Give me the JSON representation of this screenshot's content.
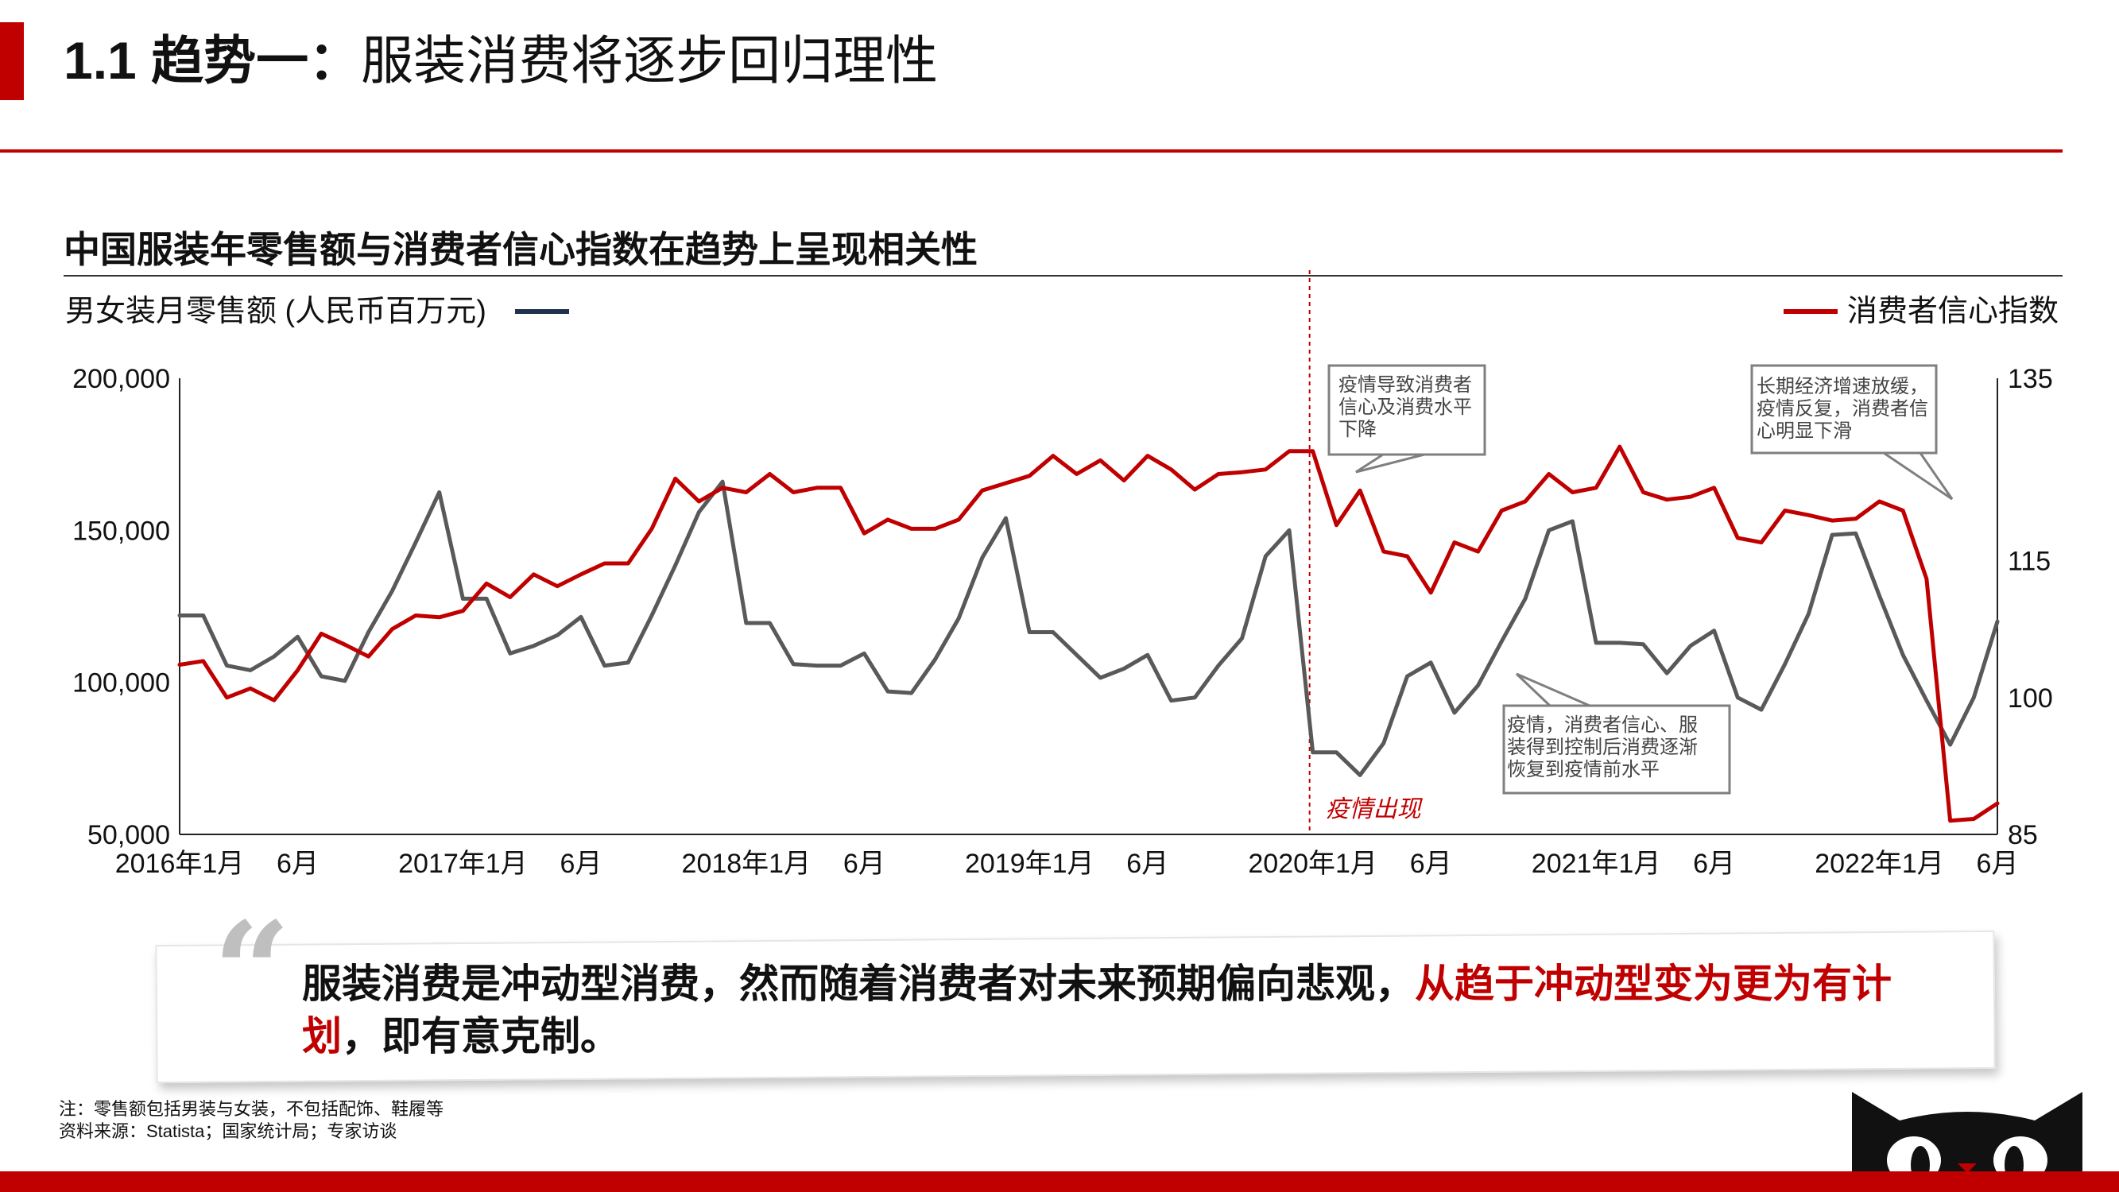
{
  "header": {
    "title_num": "1.1 趋势一：",
    "title_rest": "服装消费将逐步回归理性"
  },
  "chart_title": "中国服装年零售额与消费者信心指数在趋势上呈现相关性",
  "chart_data": {
    "type": "line",
    "x_tick_labels": [
      "2016年1月",
      "6月",
      "2017年1月",
      "6月",
      "2018年1月",
      "6月",
      "2019年1月",
      "6月",
      "2020年1月",
      "6月",
      "2021年1月",
      "6月",
      "2022年1月",
      "6月"
    ],
    "x_tick_months": [
      "2016-01",
      "2016-06",
      "2017-01",
      "2017-06",
      "2018-01",
      "2018-06",
      "2019-01",
      "2019-06",
      "2020-01",
      "2020-06",
      "2021-01",
      "2021-06",
      "2022-01",
      "2022-06"
    ],
    "x_range": [
      "2016-01",
      "2022-06"
    ],
    "left_axis": {
      "label": "男女装月零售额 (人民币百万元)",
      "ylim": [
        50000,
        200000
      ],
      "ticks": [
        "200,000",
        "150,000",
        "100,000",
        "50,000"
      ],
      "tick_values": [
        200000,
        150000,
        100000,
        50000
      ]
    },
    "right_axis": {
      "label": "消费者信心指数",
      "ylim": [
        85,
        135
      ],
      "ticks": [
        "135",
        "115",
        "100",
        "85"
      ],
      "tick_values": [
        135,
        115,
        100,
        85
      ]
    },
    "series": [
      {
        "name": "男女装月零售额 (人民币百万元)",
        "axis": "left",
        "color": "#595959",
        "values": [
          [
            "2016-01",
            122000
          ],
          [
            "2016-02",
            122000
          ],
          [
            "2016-03",
            105500
          ],
          [
            "2016-04",
            104000
          ],
          [
            "2016-05",
            108500
          ],
          [
            "2016-06",
            115000
          ],
          [
            "2016-07",
            102000
          ],
          [
            "2016-08",
            100500
          ],
          [
            "2016-09",
            116500
          ],
          [
            "2016-10",
            130000
          ],
          [
            "2016-11",
            146000
          ],
          [
            "2016-12",
            162500
          ],
          [
            "2017-01",
            127500
          ],
          [
            "2017-02",
            127500
          ],
          [
            "2017-03",
            109500
          ],
          [
            "2017-04",
            112000
          ],
          [
            "2017-05",
            115500
          ],
          [
            "2017-06",
            121500
          ],
          [
            "2017-07",
            105500
          ],
          [
            "2017-08",
            106500
          ],
          [
            "2017-09",
            122000
          ],
          [
            "2017-10",
            138500
          ],
          [
            "2017-11",
            156000
          ],
          [
            "2017-12",
            166000
          ],
          [
            "2018-01",
            119500
          ],
          [
            "2018-02",
            119500
          ],
          [
            "2018-03",
            106000
          ],
          [
            "2018-04",
            105500
          ],
          [
            "2018-05",
            105500
          ],
          [
            "2018-06",
            109500
          ],
          [
            "2018-07",
            97000
          ],
          [
            "2018-08",
            96500
          ],
          [
            "2018-09",
            107500
          ],
          [
            "2018-10",
            121000
          ],
          [
            "2018-11",
            141000
          ],
          [
            "2018-12",
            154000
          ],
          [
            "2019-01",
            116500
          ],
          [
            "2019-02",
            116500
          ],
          [
            "2019-03",
            109000
          ],
          [
            "2019-04",
            101500
          ],
          [
            "2019-05",
            104500
          ],
          [
            "2019-06",
            109000
          ],
          [
            "2019-07",
            94000
          ],
          [
            "2019-08",
            95000
          ],
          [
            "2019-09",
            105500
          ],
          [
            "2019-10",
            114500
          ],
          [
            "2019-11",
            141500
          ],
          [
            "2019-12",
            150000
          ],
          [
            "2020-01",
            77000
          ],
          [
            "2020-02",
            77000
          ],
          [
            "2020-03",
            69500
          ],
          [
            "2020-04",
            80000
          ],
          [
            "2020-05",
            102000
          ],
          [
            "2020-06",
            106500
          ],
          [
            "2020-07",
            90000
          ],
          [
            "2020-08",
            99000
          ],
          [
            "2020-09",
            113500
          ],
          [
            "2020-10",
            127500
          ],
          [
            "2020-11",
            150000
          ],
          [
            "2020-12",
            153000
          ],
          [
            "2021-01",
            113000
          ],
          [
            "2021-02",
            113000
          ],
          [
            "2021-03",
            112500
          ],
          [
            "2021-04",
            103000
          ],
          [
            "2021-05",
            112000
          ],
          [
            "2021-06",
            117000
          ],
          [
            "2021-07",
            95000
          ],
          [
            "2021-08",
            91000
          ],
          [
            "2021-09",
            106000
          ],
          [
            "2021-10",
            122500
          ],
          [
            "2021-11",
            148500
          ],
          [
            "2021-12",
            149000
          ],
          [
            "2022-01",
            128500
          ],
          [
            "2022-02",
            109000
          ],
          [
            "2022-03",
            94000
          ],
          [
            "2022-04",
            79500
          ],
          [
            "2022-05",
            95000
          ],
          [
            "2022-06",
            120000
          ]
        ]
      },
      {
        "name": "消费者信心指数",
        "axis": "right",
        "color": "#c00000",
        "values": [
          [
            "2016-01",
            103.6
          ],
          [
            "2016-02",
            104.0
          ],
          [
            "2016-03",
            100.0
          ],
          [
            "2016-04",
            101.0
          ],
          [
            "2016-05",
            99.7
          ],
          [
            "2016-06",
            103.0
          ],
          [
            "2016-07",
            107.0
          ],
          [
            "2016-08",
            105.8
          ],
          [
            "2016-09",
            104.5
          ],
          [
            "2016-10",
            107.5
          ],
          [
            "2016-11",
            109.0
          ],
          [
            "2016-12",
            108.8
          ],
          [
            "2017-01",
            109.5
          ],
          [
            "2017-02",
            112.5
          ],
          [
            "2017-03",
            111.0
          ],
          [
            "2017-04",
            113.5
          ],
          [
            "2017-05",
            112.2
          ],
          [
            "2017-06",
            113.5
          ],
          [
            "2017-07",
            114.7
          ],
          [
            "2017-08",
            114.7
          ],
          [
            "2017-09",
            118.5
          ],
          [
            "2017-10",
            124.0
          ],
          [
            "2017-11",
            121.5
          ],
          [
            "2017-12",
            123.0
          ],
          [
            "2018-01",
            122.5
          ],
          [
            "2018-02",
            124.5
          ],
          [
            "2018-03",
            122.5
          ],
          [
            "2018-04",
            123.0
          ],
          [
            "2018-05",
            123.0
          ],
          [
            "2018-06",
            118.0
          ],
          [
            "2018-07",
            119.5
          ],
          [
            "2018-08",
            118.5
          ],
          [
            "2018-09",
            118.5
          ],
          [
            "2018-10",
            119.5
          ],
          [
            "2018-11",
            122.7
          ],
          [
            "2018-12",
            123.5
          ],
          [
            "2019-01",
            124.3
          ],
          [
            "2019-02",
            126.5
          ],
          [
            "2019-03",
            124.5
          ],
          [
            "2019-04",
            126.0
          ],
          [
            "2019-05",
            123.8
          ],
          [
            "2019-06",
            126.5
          ],
          [
            "2019-07",
            125.0
          ],
          [
            "2019-08",
            122.8
          ],
          [
            "2019-09",
            124.5
          ],
          [
            "2019-10",
            124.7
          ],
          [
            "2019-11",
            125.0
          ],
          [
            "2019-12",
            127.0
          ],
          [
            "2020-01",
            127.0
          ],
          [
            "2020-02",
            118.9
          ],
          [
            "2020-03",
            122.7
          ],
          [
            "2020-04",
            116.0
          ],
          [
            "2020-05",
            115.5
          ],
          [
            "2020-06",
            111.5
          ],
          [
            "2020-07",
            117.0
          ],
          [
            "2020-08",
            116.0
          ],
          [
            "2020-09",
            120.5
          ],
          [
            "2020-10",
            121.5
          ],
          [
            "2020-11",
            124.5
          ],
          [
            "2020-12",
            122.5
          ],
          [
            "2021-01",
            123.0
          ],
          [
            "2021-02",
            127.5
          ],
          [
            "2021-03",
            122.5
          ],
          [
            "2021-04",
            121.7
          ],
          [
            "2021-05",
            122.0
          ],
          [
            "2021-06",
            123.0
          ],
          [
            "2021-07",
            117.5
          ],
          [
            "2021-08",
            117.0
          ],
          [
            "2021-09",
            120.5
          ],
          [
            "2021-10",
            120.0
          ],
          [
            "2021-11",
            119.4
          ],
          [
            "2021-12",
            119.6
          ],
          [
            "2022-01",
            121.5
          ],
          [
            "2022-02",
            120.5
          ],
          [
            "2022-03",
            113.0
          ],
          [
            "2022-04",
            86.5
          ],
          [
            "2022-05",
            86.7
          ],
          [
            "2022-06",
            88.4
          ]
        ]
      }
    ],
    "event_marker": {
      "month": "2020-01",
      "label": "疫情出现",
      "color": "#c00000"
    },
    "annotations": [
      {
        "text": [
          "疫情导致消费者",
          "信心及消费水平",
          "下降"
        ]
      },
      {
        "text": [
          "疫情，消费者信心、服",
          "装得到控制后消费逐渐",
          "恢复到疫情前水平"
        ]
      },
      {
        "text": [
          "长期经济增速放缓，",
          "疫情反复，消费者信",
          "心明显下滑"
        ]
      }
    ],
    "grid": false,
    "legend": "top"
  },
  "callout": {
    "quote_mark": "“",
    "text_normal": "服装消费是冲动型消费，然而随着消费者对未来预期偏向悲观，",
    "text_highlight": "从趋于冲动型变为更为有计划",
    "text_end": "，即有意克制。"
  },
  "footnotes": {
    "note": "注：零售额包括男装与女装，不包括配饰、鞋履等",
    "source": "资料来源：Statista；国家统计局；专家访谈"
  },
  "colors": {
    "accent": "#c00000",
    "apparel_line": "#595959",
    "confidence_line": "#c00000",
    "legend_apparel": "#1f3350"
  }
}
